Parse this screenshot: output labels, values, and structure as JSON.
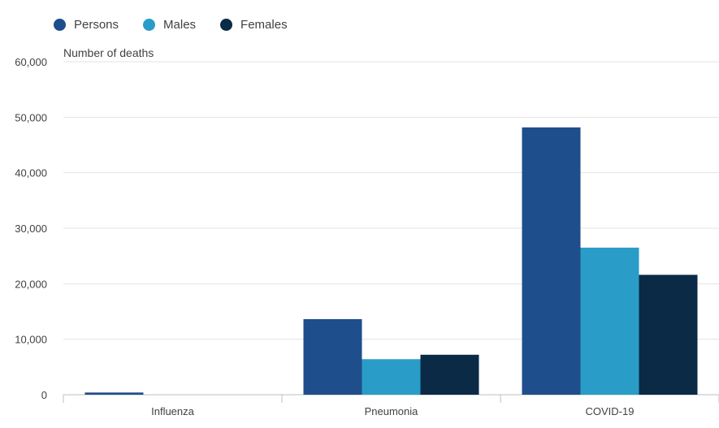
{
  "chart_data": {
    "type": "bar",
    "ylabel": "Number of deaths",
    "ylim": [
      0,
      60000
    ],
    "yticks": [
      0,
      10000,
      20000,
      30000,
      40000,
      50000,
      60000
    ],
    "ytick_labels": [
      "0",
      "10,000",
      "20,000",
      "30,000",
      "40,000",
      "50,000",
      "60,000"
    ],
    "categories": [
      "Influenza",
      "Pneumonia",
      "COVID-19"
    ],
    "series": [
      {
        "name": "Persons",
        "color": "#1f4e8c",
        "values": [
          394,
          13619,
          48168
        ]
      },
      {
        "name": "Males",
        "color": "#2a9cc8",
        "values": [
          0,
          6400,
          26500
        ]
      },
      {
        "name": "Females",
        "color": "#0b2a45",
        "values": [
          0,
          7200,
          21600
        ]
      }
    ],
    "grid": true,
    "legend_position": "top-left"
  }
}
